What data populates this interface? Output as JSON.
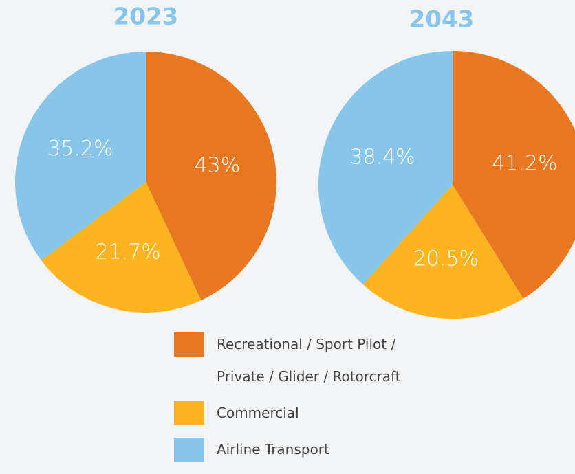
{
  "chart_data": [
    {
      "type": "pie",
      "title": "2023",
      "categories": [
        "Recreational / Sport Pilot / Private / Glider / Rotorcraft",
        "Commercial",
        "Airline Transport"
      ],
      "values": [
        43,
        21.7,
        35.2
      ],
      "value_labels": [
        "43%",
        "21.7%",
        "35.2%"
      ],
      "colors": [
        "#e87722",
        "#fbb41f",
        "#87c6ea"
      ],
      "legend": "bottom"
    },
    {
      "type": "pie",
      "title": "2043",
      "categories": [
        "Recreational / Sport Pilot / Private / Glider / Rotorcraft",
        "Commercial",
        "Airline Transport"
      ],
      "values": [
        41.2,
        20.5,
        38.4
      ],
      "value_labels": [
        "41.2%",
        "20.5%",
        "38.4%"
      ],
      "colors": [
        "#e87722",
        "#fbb41f",
        "#87c6ea"
      ]
    }
  ]
}
